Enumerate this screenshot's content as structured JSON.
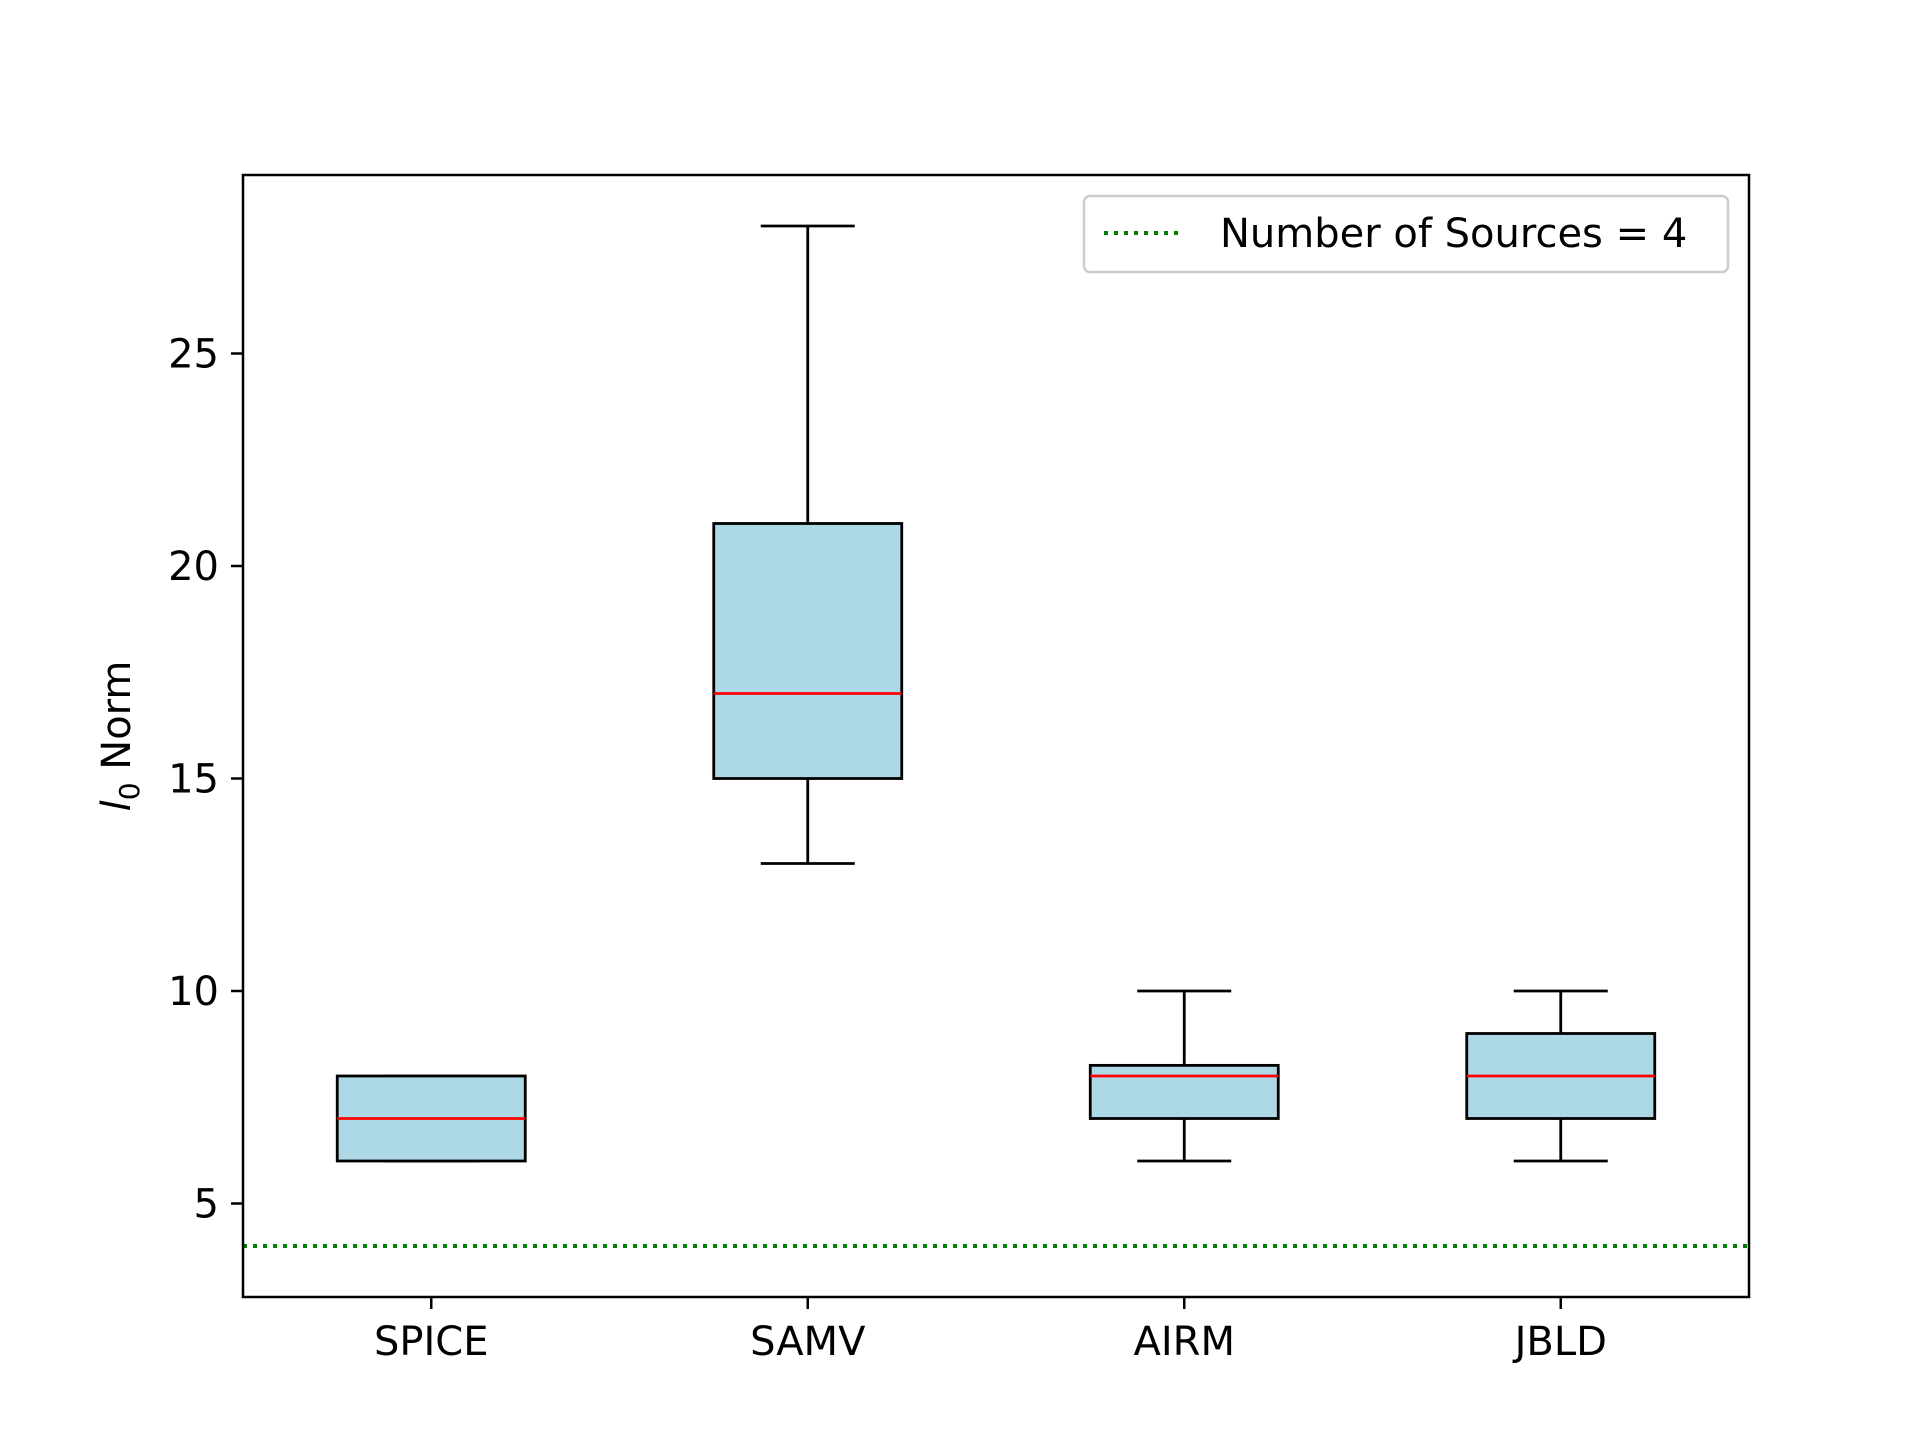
{
  "chart_data": {
    "type": "box",
    "categories": [
      "SPICE",
      "SAMV",
      "AIRM",
      "JBLD"
    ],
    "boxes": [
      {
        "name": "SPICE",
        "whisker_low": 6,
        "q1": 6,
        "median": 7,
        "q3": 8,
        "whisker_high": 8
      },
      {
        "name": "SAMV",
        "whisker_low": 13,
        "q1": 15,
        "median": 17,
        "q3": 21,
        "whisker_high": 28
      },
      {
        "name": "AIRM",
        "whisker_low": 6,
        "q1": 7,
        "median": 8,
        "q3": 8.25,
        "whisker_high": 10
      },
      {
        "name": "JBLD",
        "whisker_low": 6,
        "q1": 7,
        "median": 8,
        "q3": 9,
        "whisker_high": 10
      }
    ],
    "reference_line": {
      "y": 4,
      "label": "Number of Sources = 4",
      "color": "#008000",
      "style": "dotted"
    },
    "ylabel_symbol": "l",
    "ylabel_subscript": "0",
    "ylabel_text": " Norm",
    "xlabel": "",
    "ylim": [
      2.8,
      29.2
    ],
    "yticks": [
      5,
      10,
      15,
      20,
      25
    ],
    "box_fill": "#add8e6",
    "median_color": "#ff0000",
    "legend_position": "top-right",
    "grid": false
  }
}
